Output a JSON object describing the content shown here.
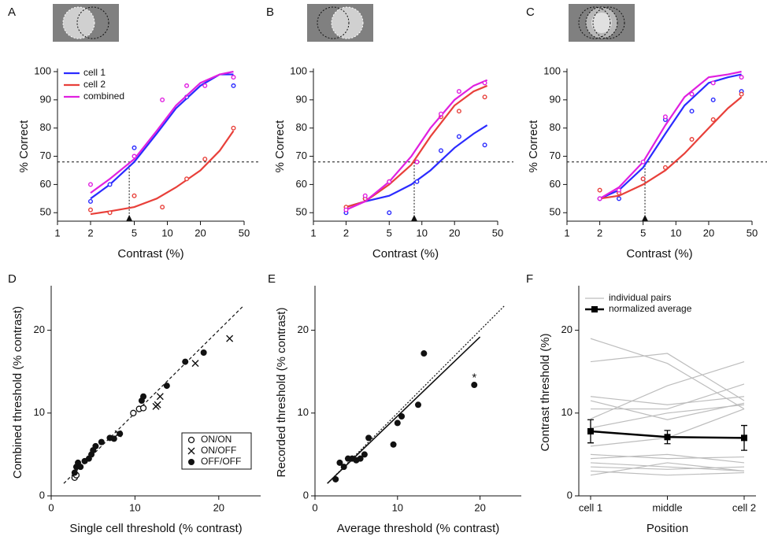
{
  "chart_data": [
    {
      "type": "line",
      "label": "A",
      "xscale": "log",
      "xlabel": "Contrast (%)",
      "ylabel": "% Correct",
      "xlim": [
        1,
        50
      ],
      "xticks": [
        1,
        2,
        5,
        10,
        20,
        50
      ],
      "ylim": [
        47,
        100
      ],
      "yticks": [
        50,
        60,
        70,
        80,
        90,
        100
      ],
      "threshold": 68,
      "threshold_x": 4.5,
      "x": [
        2,
        3,
        5,
        9,
        15,
        22,
        40
      ],
      "curve_x": [
        2,
        3,
        5,
        8,
        12,
        20,
        30,
        40
      ],
      "series": [
        {
          "name": "cell 1",
          "color": "#2b2bff",
          "values": [
            54,
            60,
            73,
            null,
            91,
            null,
            95
          ],
          "curve": [
            55,
            60,
            68,
            78,
            87,
            95,
            99,
            99
          ]
        },
        {
          "name": "cell 2",
          "color": "#e8403a",
          "values": [
            51,
            50,
            56,
            52,
            62,
            69,
            80
          ],
          "curve": [
            49.5,
            50.5,
            52,
            55,
            59,
            65,
            72,
            79
          ]
        },
        {
          "name": "combined",
          "color": "#e020e0",
          "values": [
            60,
            null,
            70,
            90,
            95,
            95,
            98
          ],
          "curve": [
            57,
            62,
            69,
            79,
            88,
            96,
            99,
            100
          ]
        }
      ]
    },
    {
      "type": "line",
      "label": "B",
      "xscale": "log",
      "xlabel": "Contrast (%)",
      "ylabel": "% Correct",
      "xlim": [
        1,
        50
      ],
      "xticks": [
        1,
        2,
        5,
        10,
        20,
        50
      ],
      "ylim": [
        47,
        100
      ],
      "yticks": [
        50,
        60,
        70,
        80,
        90,
        100
      ],
      "threshold": 68,
      "threshold_x": 8.5,
      "x": [
        2,
        3,
        5,
        9,
        15,
        22,
        38
      ],
      "curve_x": [
        2,
        3,
        5,
        8,
        12,
        20,
        30,
        40
      ],
      "series": [
        {
          "color": "#2b2bff",
          "values": [
            50,
            55,
            50,
            61,
            72,
            77,
            74
          ],
          "curve": [
            52,
            54,
            56,
            60,
            65,
            73,
            78,
            81
          ]
        },
        {
          "color": "#e8403a",
          "values": [
            52,
            55,
            61,
            68,
            84,
            86,
            91
          ],
          "curve": [
            52,
            54,
            60,
            67,
            77,
            88,
            93,
            95
          ]
        },
        {
          "color": "#e020e0",
          "values": [
            51,
            56,
            61,
            68,
            85,
            93,
            96
          ],
          "curve": [
            51,
            54,
            61,
            70,
            80,
            90,
            95,
            97
          ]
        }
      ]
    },
    {
      "type": "line",
      "label": "C",
      "xscale": "log",
      "xlabel": "Contrast (%)",
      "ylabel": "% Correct",
      "xlim": [
        1,
        50
      ],
      "xticks": [
        1,
        2,
        5,
        10,
        20,
        50
      ],
      "ylim": [
        47,
        100
      ],
      "yticks": [
        50,
        60,
        70,
        80,
        90,
        100
      ],
      "threshold": 68,
      "threshold_x": 5.2,
      "x": [
        2,
        3,
        5,
        8,
        14,
        22,
        40
      ],
      "curve_x": [
        2,
        3,
        5,
        8,
        12,
        20,
        30,
        40
      ],
      "series": [
        {
          "color": "#2b2bff",
          "values": [
            55,
            55,
            62,
            83,
            86,
            90,
            93
          ],
          "curve": [
            55,
            58,
            66,
            78,
            88,
            96,
            98,
            99
          ]
        },
        {
          "color": "#e8403a",
          "values": [
            58,
            57,
            62,
            66,
            76,
            83,
            92
          ],
          "curve": [
            55,
            56,
            60,
            65,
            71,
            80,
            87,
            91
          ]
        },
        {
          "color": "#e020e0",
          "values": [
            55,
            58,
            68,
            84,
            92,
            96,
            98
          ],
          "curve": [
            55,
            59,
            68,
            81,
            91,
            98,
            99,
            100
          ]
        }
      ]
    },
    {
      "type": "scatter",
      "label": "D",
      "xlabel": "Single cell threshold (% contrast)",
      "ylabel": "Combined threshold (% contrast)",
      "xlim": [
        0,
        25
      ],
      "xticks": [
        0,
        10,
        20
      ],
      "ylim": [
        0,
        25
      ],
      "yticks": [
        0,
        10,
        20
      ],
      "lines": [
        {
          "style": "dashed",
          "x": [
            1.5,
            23
          ],
          "y": [
            1.5,
            23
          ]
        }
      ],
      "series": [
        {
          "name": "ON/ON",
          "marker": "open-circle",
          "x": [
            2.8,
            3,
            9.8,
            10.5,
            11
          ],
          "y": [
            2.2,
            2.5,
            10,
            10.5,
            10.6
          ]
        },
        {
          "name": "ON/OFF",
          "marker": "cross",
          "x": [
            8,
            12.5,
            12.7,
            13,
            17.2,
            21.3
          ],
          "y": [
            7.5,
            10.8,
            11,
            12,
            16,
            19
          ]
        },
        {
          "name": "OFF/OFF",
          "marker": "filled-circle",
          "x": [
            2.8,
            3,
            3.2,
            3.5,
            4,
            4.5,
            4.8,
            5,
            5.3,
            6,
            7,
            7.5,
            8.2,
            10.8,
            11,
            13.8,
            16,
            18.2
          ],
          "y": [
            2.8,
            3.5,
            4,
            3.5,
            4.2,
            4.5,
            5,
            5.5,
            6,
            6.5,
            7,
            6.9,
            7.5,
            11.5,
            12,
            13.3,
            16.2,
            17.3
          ]
        }
      ]
    },
    {
      "type": "scatter",
      "label": "E",
      "xlabel": "Average threshold (% contrast)",
      "ylabel": "Recorded threshold (% contrast)",
      "xlim": [
        0,
        25
      ],
      "xticks": [
        0,
        10,
        20
      ],
      "ylim": [
        0,
        25
      ],
      "yticks": [
        0,
        10,
        20
      ],
      "lines": [
        {
          "style": "dotted",
          "x": [
            1.5,
            23
          ],
          "y": [
            1.5,
            23
          ]
        },
        {
          "style": "solid",
          "x": [
            1.5,
            20
          ],
          "y": [
            1.5,
            19.2
          ]
        }
      ],
      "annotations": [
        {
          "text": "*",
          "x": 19.3,
          "y": 14.6
        }
      ],
      "series": [
        {
          "marker": "filled-circle",
          "x": [
            2.5,
            3,
            3.5,
            4,
            4.5,
            5,
            5.5,
            6,
            6.5,
            9.5,
            10,
            10.5,
            12.5,
            13.2,
            19.3
          ],
          "y": [
            2,
            4,
            3.5,
            4.5,
            4.5,
            4.3,
            4.5,
            5,
            7,
            6.2,
            8.8,
            9.6,
            11,
            17.2,
            13.4
          ]
        }
      ]
    },
    {
      "type": "line",
      "label": "F",
      "xlabel": "Position",
      "ylabel": "Contrast threshold (%)",
      "categories": [
        "cell 1",
        "middle",
        "cell 2"
      ],
      "ylim": [
        0,
        25
      ],
      "yticks": [
        0,
        10,
        20
      ],
      "pairs": {
        "name": "individual pairs",
        "color": "#bdbdbd",
        "lines": [
          [
            19,
            16,
            10.5
          ],
          [
            16.2,
            17.2,
            11.5
          ],
          [
            12,
            11,
            12
          ],
          [
            11.5,
            9.2,
            11.2
          ],
          [
            10.5,
            10.5,
            13.5
          ],
          [
            9.3,
            13.3,
            16.2
          ],
          [
            8.2,
            10,
            11
          ],
          [
            6,
            7,
            10.5
          ],
          [
            5,
            4.5,
            4.7
          ],
          [
            4.5,
            5,
            4
          ],
          [
            4,
            3.5,
            3
          ],
          [
            3.5,
            3.2,
            3.5
          ],
          [
            3,
            2.5,
            2.8
          ],
          [
            2.5,
            4,
            3
          ]
        ]
      },
      "average": {
        "name": "normalized average",
        "color": "#000000",
        "values": [
          7.8,
          7.1,
          7.0
        ],
        "errors": [
          1.4,
          0.8,
          1.5
        ]
      }
    }
  ]
}
